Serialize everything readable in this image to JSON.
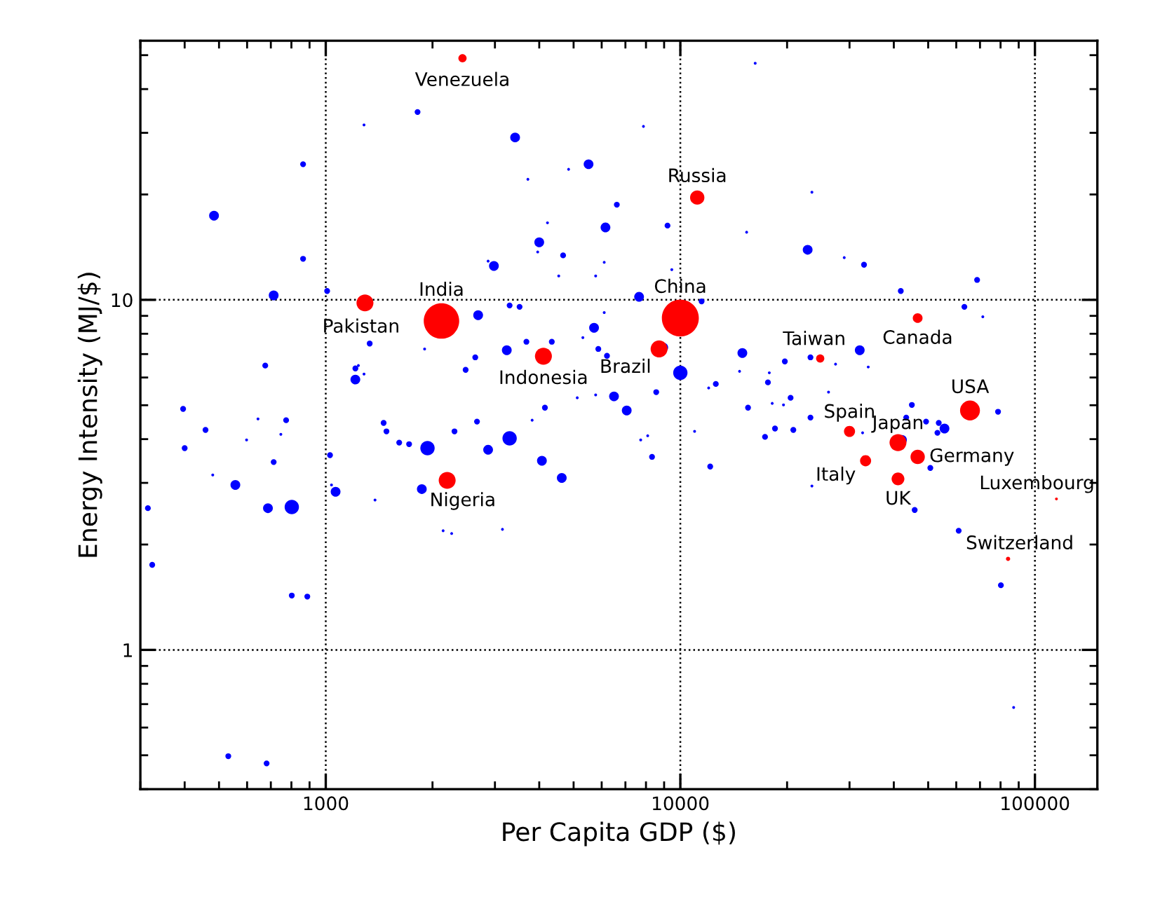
{
  "chart_data": {
    "type": "bubble",
    "xlabel": "Per Capita GDP ($)",
    "ylabel": "Energy Intensity (MJ/$)",
    "log": "xy",
    "grid": true,
    "xlim": [
      300,
      150000
    ],
    "ylim": [
      0.4,
      55
    ],
    "xticks": [
      1000,
      10000,
      100000
    ],
    "yticks": [
      1,
      10
    ],
    "series": [
      {
        "color": "#0000ff",
        "x": [
          1815,
          1282,
          863,
          484,
          863,
          713,
          1009,
          1330,
          1900,
          675,
          1212,
          1236,
          1282,
          1212,
          2480,
          396,
          458,
          644,
          773,
          400,
          598,
          747,
          713,
          480,
          556,
          315,
          687,
          802,
          324,
          802,
          887,
          531,
          681,
          1028,
          1038,
          1066,
          1456,
          1483,
          1611,
          1718,
          1936,
          1866,
          2307,
          1377,
          2143,
          2265,
          3420,
          5510,
          4840,
          3716,
          7870,
          16260,
          6620,
          4220,
          6150,
          9200,
          15380,
          4000,
          3960,
          4670,
          6100,
          2870,
          2980,
          4540,
          5770,
          9460,
          7650,
          11480,
          3300,
          3520,
          2690,
          6100,
          5710,
          5310,
          3680,
          4340,
          5870,
          3240,
          8950,
          2640,
          6210,
          10000,
          14960,
          19710,
          14690,
          17820,
          12590,
          12020,
          17660,
          6500,
          8550,
          7060,
          15520,
          19540,
          18160,
          5120,
          5770,
          4150,
          2670,
          3300,
          2870,
          3820,
          4070,
          4630,
          7730,
          8090,
          8320,
          3150,
          10970,
          12140,
          17330,
          18490,
          20830,
          23500,
          22860,
          28990,
          32960,
          41850,
          68700,
          63250,
          71290,
          23280,
          32060,
          27400,
          33880,
          20460,
          26180,
          44970,
          78700,
          23280,
          43350,
          49320,
          53550,
          55590,
          53090,
          42170,
          20650,
          32660,
          50700,
          23500,
          45800,
          60950,
          80170,
          87100
        ],
        "values": [
          34.4,
          31.6,
          24.4,
          17.4,
          13.1,
          10.3,
          10.6,
          7.5,
          7.24,
          6.49,
          6.37,
          6.49,
          6.14,
          5.92,
          6.31,
          4.88,
          4.25,
          4.57,
          4.53,
          3.77,
          3.98,
          4.13,
          3.44,
          3.16,
          2.96,
          2.54,
          2.54,
          2.56,
          1.75,
          1.43,
          1.42,
          0.497,
          0.474,
          3.6,
          2.96,
          2.83,
          4.45,
          4.21,
          3.91,
          3.87,
          3.77,
          2.88,
          4.21,
          2.68,
          2.19,
          2.15,
          29.1,
          24.4,
          23.6,
          22.1,
          31.3,
          47.4,
          18.7,
          16.6,
          16.1,
          16.3,
          15.6,
          14.6,
          13.7,
          13.4,
          12.8,
          12.9,
          12.5,
          11.7,
          11.7,
          12.2,
          10.2,
          9.9,
          9.64,
          9.55,
          9.04,
          9.2,
          8.32,
          7.8,
          7.59,
          7.59,
          7.24,
          7.18,
          7.31,
          6.85,
          6.92,
          6.19,
          7.05,
          6.67,
          6.25,
          6.19,
          5.75,
          5.6,
          5.81,
          5.3,
          5.45,
          4.83,
          4.92,
          5.01,
          5.06,
          5.25,
          5.35,
          4.92,
          4.49,
          4.02,
          3.73,
          4.53,
          3.47,
          3.1,
          3.98,
          4.09,
          3.56,
          2.21,
          4.21,
          3.34,
          4.06,
          4.29,
          4.25,
          20.3,
          13.9,
          13.2,
          12.6,
          10.6,
          11.4,
          9.55,
          8.95,
          6.85,
          7.18,
          6.55,
          6.43,
          5.25,
          5.45,
          5.01,
          4.79,
          4.61,
          4.61,
          4.49,
          4.45,
          4.29,
          4.17,
          3.98,
          4.25,
          4.17,
          3.31,
          2.94,
          2.51,
          2.19,
          1.53,
          0.685
        ],
        "sizes": [
          0.025,
          0.006,
          0.025,
          0.07,
          0.025,
          0.07,
          0.025,
          0.025,
          0.006,
          0.025,
          0.025,
          0.006,
          0.006,
          0.07,
          0.025,
          0.025,
          0.025,
          0.006,
          0.025,
          0.025,
          0.006,
          0.006,
          0.025,
          0.006,
          0.07,
          0.025,
          0.07,
          0.15,
          0.025,
          0.025,
          0.025,
          0.025,
          0.025,
          0.025,
          0.006,
          0.07,
          0.025,
          0.025,
          0.025,
          0.025,
          0.15,
          0.07,
          0.025,
          0.006,
          0.006,
          0.006,
          0.07,
          0.07,
          0.006,
          0.006,
          0.006,
          0.006,
          0.025,
          0.006,
          0.07,
          0.025,
          0.006,
          0.07,
          0.006,
          0.025,
          0.006,
          0.006,
          0.07,
          0.006,
          0.006,
          0.006,
          0.07,
          0.025,
          0.025,
          0.025,
          0.07,
          0.006,
          0.07,
          0.006,
          0.025,
          0.025,
          0.025,
          0.07,
          0.07,
          0.025,
          0.025,
          0.15,
          0.07,
          0.025,
          0.006,
          0.006,
          0.025,
          0.006,
          0.025,
          0.07,
          0.025,
          0.07,
          0.025,
          0.006,
          0.006,
          0.006,
          0.006,
          0.025,
          0.025,
          0.15,
          0.07,
          0.006,
          0.07,
          0.07,
          0.006,
          0.006,
          0.025,
          0.006,
          0.006,
          0.025,
          0.025,
          0.025,
          0.025,
          0.006,
          0.07,
          0.006,
          0.025,
          0.025,
          0.025,
          0.025,
          0.006,
          0.025,
          0.07,
          0.006,
          0.006,
          0.025,
          0.006,
          0.025,
          0.025,
          0.025,
          0.025,
          0.025,
          0.025,
          0.07,
          0.025,
          0.07,
          0.006,
          0.006,
          0.025,
          0.006,
          0.025,
          0.025,
          0.025,
          0.006
        ]
      },
      {
        "color": "#ff0000",
        "x": [
          2430,
          1290,
          2120,
          11160,
          10000,
          4110,
          8710,
          2200,
          24800,
          46700,
          65600,
          30000,
          41100,
          46700,
          33300,
          41100,
          115000,
          84000
        ],
        "values": [
          49,
          9.8,
          8.7,
          19.6,
          8.87,
          6.9,
          7.24,
          3.05,
          6.8,
          8.87,
          4.83,
          4.21,
          3.91,
          3.56,
          3.47,
          3.08,
          2.7,
          1.82
        ],
        "sizes": [
          0.05,
          0.21,
          0.92,
          0.15,
          1,
          0.21,
          0.21,
          0.21,
          0.05,
          0.07,
          0.29,
          0.09,
          0.21,
          0.15,
          0.09,
          0.12,
          0.006,
          0.013
        ]
      }
    ],
    "annotations": [
      {
        "text": "Venezuela",
        "x": 2430,
        "y": 49
      },
      {
        "text": "Pakistan",
        "x": 1290,
        "y": 9.8
      },
      {
        "text": "India",
        "x": 2120,
        "y": 8.7
      },
      {
        "text": "Russia",
        "x": 11160,
        "y": 19.6
      },
      {
        "text": "China",
        "x": 10000,
        "y": 8.87
      },
      {
        "text": "Indonesia",
        "x": 4110,
        "y": 6.9
      },
      {
        "text": "Brazil",
        "x": 8710,
        "y": 7.24
      },
      {
        "text": "Nigeria",
        "x": 2200,
        "y": 3.05
      },
      {
        "text": "Taiwan",
        "x": 24800,
        "y": 6.8
      },
      {
        "text": "Canada",
        "x": 46700,
        "y": 8.87
      },
      {
        "text": "USA",
        "x": 65600,
        "y": 4.83
      },
      {
        "text": "Spain",
        "x": 30000,
        "y": 4.21
      },
      {
        "text": "Japan",
        "x": 41100,
        "y": 3.91
      },
      {
        "text": "Germany",
        "x": 46700,
        "y": 3.56
      },
      {
        "text": "Italy",
        "x": 33300,
        "y": 3.47
      },
      {
        "text": "UK",
        "x": 41100,
        "y": 3.08
      },
      {
        "text": "Luxembourg",
        "x": 115000,
        "y": 2.7
      },
      {
        "text": "Switzerland",
        "x": 84000,
        "y": 1.82
      }
    ]
  }
}
